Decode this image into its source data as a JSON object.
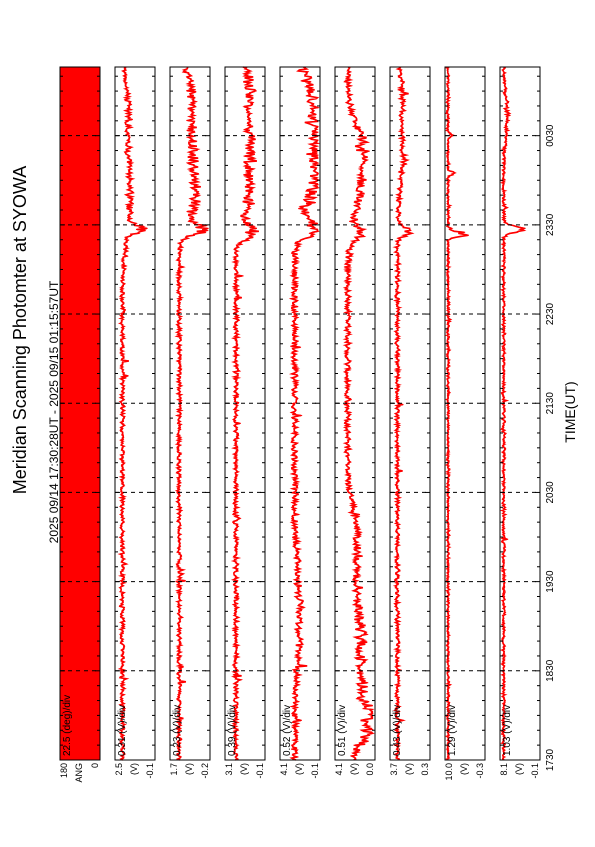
{
  "title": "Meridian Scanning Photomter at SYOWA",
  "subtitle": "2025 09/14 17:30:28UT - 2025 09/15 01:15:57UT",
  "chart_data": {
    "type": "line",
    "orientation": "rotated-90",
    "title": "Meridian Scanning Photomter at SYOWA",
    "subtitle": "2025 09/14 17:30:28UT - 2025 09/15 01:15:57UT",
    "xlabel": "TIME(UT)",
    "x_ticks": [
      "1730",
      "1830",
      "1930",
      "2030",
      "2130",
      "2230",
      "2330",
      "0030"
    ],
    "x_range_hours": [
      17.5,
      25.27
    ],
    "grid_dashed_at_major_ticks": true,
    "line_color": "#ff0000",
    "panels": [
      {
        "name": "ANG",
        "scale": "22.5 (deg)/div",
        "ymax": "180",
        "ymin": "0",
        "kind": "fill"
      },
      {
        "name": "(V)",
        "scale": "0.31 (V)/div",
        "ymax": "2.5",
        "ymin": "-0.1",
        "base": 0.15,
        "noise": 0.05,
        "events": [
          {
            "t": 23.45,
            "a": 0.35,
            "w": 0.06
          },
          {
            "t": 23.55,
            "a": 0.15,
            "w": 0.4
          },
          {
            "t": 24.2,
            "a": 0.18,
            "w": 0.6
          },
          {
            "t": 24.9,
            "a": 0.12,
            "w": 0.3
          }
        ]
      },
      {
        "name": "(V)",
        "scale": "0.23 (V)/div",
        "ymax": "1.7",
        "ymin": "-0.2",
        "base": 0.2,
        "noise": 0.05,
        "events": [
          {
            "t": 23.45,
            "a": 0.55,
            "w": 0.08
          },
          {
            "t": 23.75,
            "a": 0.35,
            "w": 0.3
          },
          {
            "t": 24.3,
            "a": 0.38,
            "w": 0.5
          },
          {
            "t": 25.0,
            "a": 0.3,
            "w": 0.35
          }
        ]
      },
      {
        "name": "(V)",
        "scale": "0.39 (V)/div",
        "ymax": "3.1",
        "ymin": "-0.1",
        "base": 0.25,
        "noise": 0.06,
        "events": [
          {
            "t": 23.42,
            "a": 0.45,
            "w": 0.1
          },
          {
            "t": 23.8,
            "a": 0.32,
            "w": 0.3
          },
          {
            "t": 24.35,
            "a": 0.38,
            "w": 0.4
          },
          {
            "t": 25.0,
            "a": 0.35,
            "w": 0.4
          }
        ]
      },
      {
        "name": "(V)",
        "scale": "0.52 (V)/div",
        "ymax": "4.1",
        "ymin": "-0.1",
        "base": 0.35,
        "noise": 0.08,
        "events": [
          {
            "t": 19.1,
            "a": 0.15,
            "w": 0.7
          },
          {
            "t": 23.45,
            "a": 0.55,
            "w": 0.12
          },
          {
            "t": 23.9,
            "a": 0.45,
            "w": 0.3
          },
          {
            "t": 24.4,
            "a": 0.5,
            "w": 0.4
          },
          {
            "t": 25.0,
            "a": 0.4,
            "w": 0.4
          }
        ]
      },
      {
        "name": "(V)",
        "scale": "0.51 (V)/div",
        "ymax": "4.1",
        "ymin": "0.0",
        "base": 0.3,
        "noise": 0.07,
        "events": [
          {
            "t": 17.9,
            "a": 0.45,
            "w": 0.35
          },
          {
            "t": 18.8,
            "a": 0.35,
            "w": 0.9
          },
          {
            "t": 20.0,
            "a": 0.22,
            "w": 0.4
          },
          {
            "t": 23.4,
            "a": 0.3,
            "w": 0.12
          },
          {
            "t": 23.9,
            "a": 0.3,
            "w": 0.4
          },
          {
            "t": 24.4,
            "a": 0.35,
            "w": 0.35
          }
        ]
      },
      {
        "name": "(V)",
        "scale": "0.43 (V)/div",
        "ymax": "3.7",
        "ymin": "0.3",
        "base": 0.15,
        "noise": 0.05,
        "events": [
          {
            "t": 23.43,
            "a": 0.3,
            "w": 0.07
          },
          {
            "t": 24.3,
            "a": 0.15,
            "w": 0.5
          },
          {
            "t": 25.0,
            "a": 0.12,
            "w": 0.3
          }
        ]
      },
      {
        "name": "(V)",
        "scale": "1.29 (V)/div",
        "ymax": "10.0",
        "ymin": "-0.3",
        "base": 0.03,
        "noise": 0.02,
        "events": [
          {
            "t": 23.4,
            "a": 0.5,
            "w": 0.04
          },
          {
            "t": 24.08,
            "a": 0.25,
            "w": 0.02
          },
          {
            "t": 24.5,
            "a": 0.1,
            "w": 0.03
          }
        ]
      },
      {
        "name": "(V)",
        "scale": "1.03 (V)/div",
        "ymax": "8.1",
        "ymin": "-0.1",
        "base": 0.05,
        "noise": 0.03,
        "events": [
          {
            "t": 23.45,
            "a": 0.45,
            "w": 0.05
          },
          {
            "t": 24.7,
            "a": 0.1,
            "w": 0.3
          }
        ]
      }
    ]
  }
}
